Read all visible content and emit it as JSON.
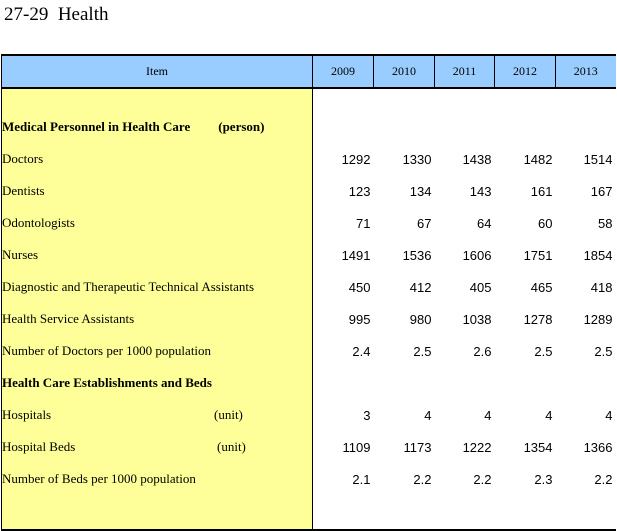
{
  "title": "27-29  Health",
  "headers": {
    "item": "Item",
    "years": [
      "2009",
      "2010",
      "2011",
      "2012",
      "2013"
    ]
  },
  "sections": {
    "personnel": {
      "label": "Medical Personnel in Health Care",
      "unit": "(person)"
    },
    "establishments": {
      "label": "Health Care Establishments and Beds"
    }
  },
  "rows": [
    {
      "label": "Doctors",
      "values": [
        "1292",
        "1330",
        "1438",
        "1482",
        "1514"
      ]
    },
    {
      "label": "Dentists",
      "values": [
        "123",
        "134",
        "143",
        "161",
        "167"
      ]
    },
    {
      "label": "Odontologists",
      "values": [
        "71",
        "67",
        "64",
        "60",
        "58"
      ]
    },
    {
      "label": "Nurses",
      "values": [
        "1491",
        "1536",
        "1606",
        "1751",
        "1854"
      ]
    },
    {
      "label": "Diagnostic and Therapeutic Technical Assistants",
      "values": [
        "450",
        "412",
        "405",
        "465",
        "418"
      ]
    },
    {
      "label": "Health Service Assistants",
      "values": [
        "995",
        "980",
        "1038",
        "1278",
        "1289"
      ]
    },
    {
      "label": "Number of Doctors per 1000 population",
      "values": [
        "2.4",
        "2.5",
        "2.6",
        "2.5",
        "2.5"
      ]
    },
    {
      "label": "Hospitals",
      "unit": "(unit)",
      "values": [
        "3",
        "4",
        "4",
        "4",
        "4"
      ]
    },
    {
      "label": "Hospital Beds",
      "unit": "(unit)",
      "values": [
        "1109",
        "1173",
        "1222",
        "1354",
        "1366"
      ]
    },
    {
      "label": "Number of Beds per 1000 population",
      "values": [
        "2.1",
        "2.2",
        "2.2",
        "2.3",
        "2.2"
      ]
    }
  ],
  "colors": {
    "header_bg": "#99ccff",
    "item_bg": "#ffff99"
  }
}
